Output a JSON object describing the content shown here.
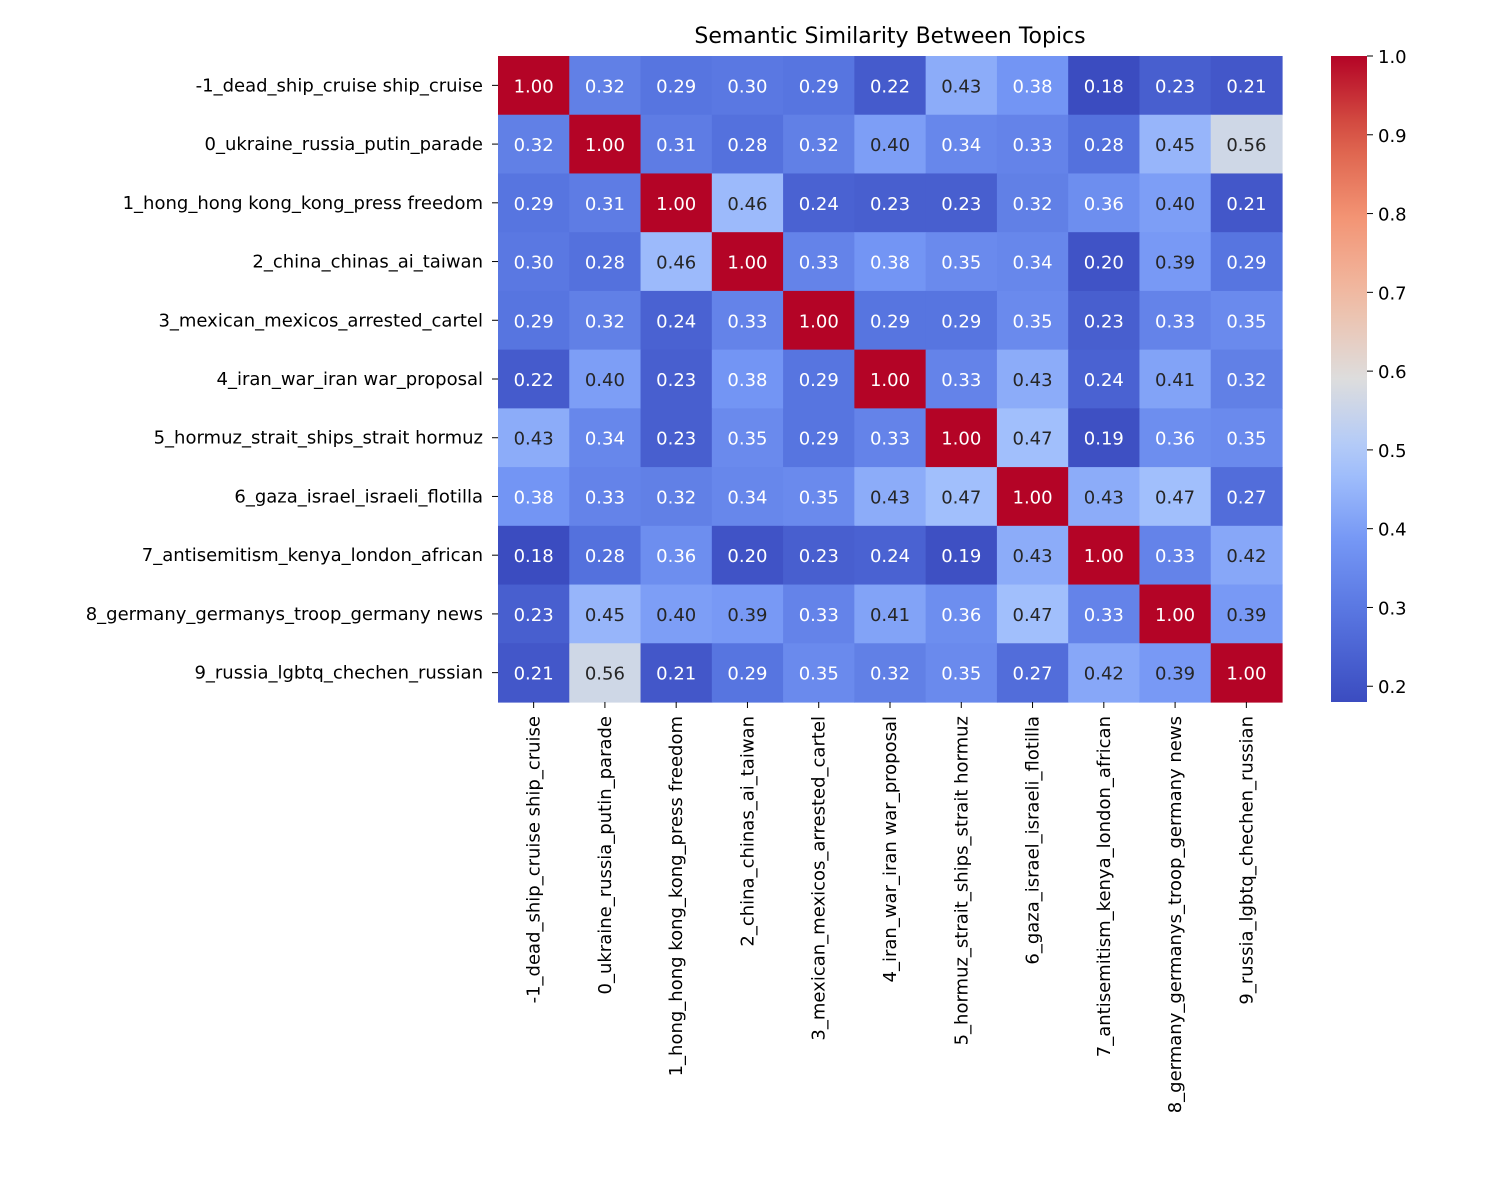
{
  "chart_data": {
    "type": "heatmap",
    "title": "Semantic Similarity Between Topics",
    "xlabel": "",
    "ylabel": "",
    "colormap": "coolwarm",
    "value_format": "0.00",
    "color_range": [
      0.18,
      1.0
    ],
    "categories": [
      "-1_dead_ship_cruise ship_cruise",
      "0_ukraine_russia_putin_parade",
      "1_hong_hong kong_kong_press freedom",
      "2_china_chinas_ai_taiwan",
      "3_mexican_mexicos_arrested_cartel",
      "4_iran_war_iran war_proposal",
      "5_hormuz_strait_ships_strait hormuz",
      "6_gaza_israel_israeli_flotilla",
      "7_antisemitism_kenya_london_african",
      "8_germany_germanys_troop_germany news",
      "9_russia_lgbtq_chechen_russian"
    ],
    "values": [
      [
        1.0,
        0.32,
        0.29,
        0.3,
        0.29,
        0.22,
        0.43,
        0.38,
        0.18,
        0.23,
        0.21
      ],
      [
        0.32,
        1.0,
        0.31,
        0.28,
        0.32,
        0.4,
        0.34,
        0.33,
        0.28,
        0.45,
        0.56
      ],
      [
        0.29,
        0.31,
        1.0,
        0.46,
        0.24,
        0.23,
        0.23,
        0.32,
        0.36,
        0.4,
        0.21
      ],
      [
        0.3,
        0.28,
        0.46,
        1.0,
        0.33,
        0.38,
        0.35,
        0.34,
        0.2,
        0.39,
        0.29
      ],
      [
        0.29,
        0.32,
        0.24,
        0.33,
        1.0,
        0.29,
        0.29,
        0.35,
        0.23,
        0.33,
        0.35
      ],
      [
        0.22,
        0.4,
        0.23,
        0.38,
        0.29,
        1.0,
        0.33,
        0.43,
        0.24,
        0.41,
        0.32
      ],
      [
        0.43,
        0.34,
        0.23,
        0.35,
        0.29,
        0.33,
        1.0,
        0.47,
        0.19,
        0.36,
        0.35
      ],
      [
        0.38,
        0.33,
        0.32,
        0.34,
        0.35,
        0.43,
        0.47,
        1.0,
        0.43,
        0.47,
        0.27
      ],
      [
        0.18,
        0.28,
        0.36,
        0.2,
        0.23,
        0.24,
        0.19,
        0.43,
        1.0,
        0.33,
        0.42
      ],
      [
        0.23,
        0.45,
        0.4,
        0.39,
        0.33,
        0.41,
        0.36,
        0.47,
        0.33,
        1.0,
        0.39
      ],
      [
        0.21,
        0.56,
        0.21,
        0.29,
        0.35,
        0.32,
        0.35,
        0.27,
        0.42,
        0.39,
        1.0
      ]
    ],
    "colorbar": {
      "ticks": [
        0.2,
        0.3,
        0.4,
        0.5,
        0.6,
        0.7,
        0.8,
        0.9,
        1.0
      ],
      "tick_labels": [
        "0.2",
        "0.3",
        "0.4",
        "0.5",
        "0.6",
        "0.7",
        "0.8",
        "0.9",
        "1.0"
      ]
    }
  }
}
